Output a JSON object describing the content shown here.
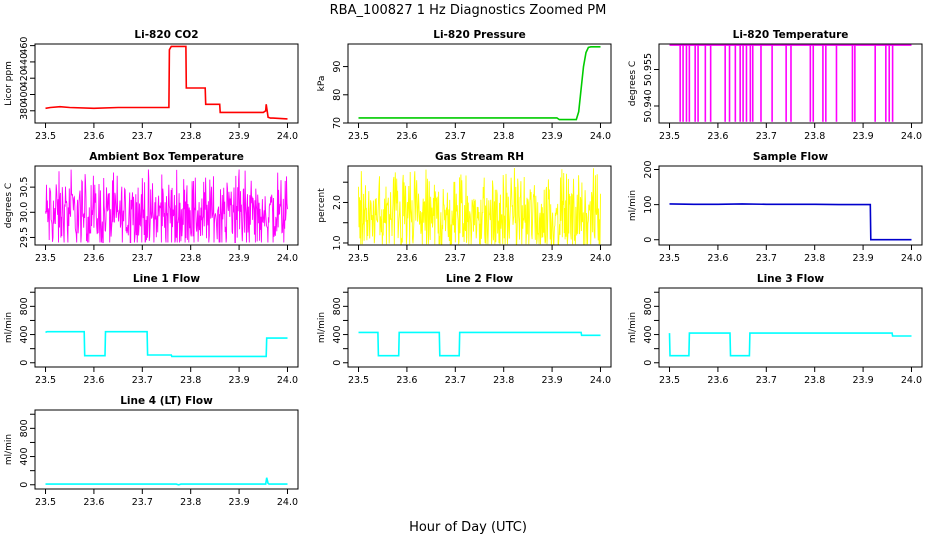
{
  "page": {
    "title": "RBA_100827  1 Hz Diagnostics Zoomed PM",
    "xlabel": "Hour of Day (UTC)"
  },
  "chart_data": [
    {
      "type": "line",
      "title": "Li-820 CO2",
      "ylabel": "Licor ppm",
      "color": "#ff0000",
      "xlim": [
        23.5,
        24.0
      ],
      "xticks": [
        23.5,
        23.6,
        23.7,
        23.8,
        23.9,
        24.0
      ],
      "ylim": [
        365,
        462
      ],
      "yticks": [
        380,
        400,
        420,
        440,
        460
      ],
      "series": [
        {
          "x": [
            23.5,
            23.51,
            23.53,
            23.55,
            23.6,
            23.65,
            23.7,
            23.755,
            23.756,
            23.76,
            23.79,
            23.791,
            23.83,
            23.831,
            23.86,
            23.861,
            23.95,
            23.955,
            23.956,
            23.96,
            23.965,
            23.97,
            24.0
          ],
          "y": [
            383,
            384,
            385,
            384,
            383,
            384,
            384,
            384,
            455,
            459,
            459,
            408,
            408,
            388,
            388,
            378,
            378,
            380,
            388,
            372,
            371,
            371,
            370
          ]
        }
      ]
    },
    {
      "type": "line",
      "title": "Li-820 Pressure",
      "ylabel": "kPa",
      "color": "#00cc00",
      "xlim": [
        23.5,
        24.0
      ],
      "xticks": [
        23.5,
        23.6,
        23.7,
        23.8,
        23.9,
        24.0
      ],
      "ylim": [
        70,
        98
      ],
      "yticks": [
        70,
        80,
        90
      ],
      "series": [
        {
          "x": [
            23.5,
            23.6,
            23.7,
            23.8,
            23.9,
            23.91,
            23.915,
            23.95,
            23.955,
            23.96,
            23.965,
            23.97,
            23.975,
            23.98,
            24.0
          ],
          "y": [
            71.8,
            71.8,
            71.8,
            71.8,
            71.8,
            71.8,
            71.2,
            71.2,
            74,
            82,
            90,
            95,
            96.8,
            97,
            97
          ]
        }
      ]
    },
    {
      "type": "line",
      "title": "Li-820 Temperature",
      "ylabel": "degrees C",
      "color": "#ff00ff",
      "xlim": [
        23.5,
        24.0
      ],
      "xticks": [
        23.5,
        23.6,
        23.7,
        23.8,
        23.9,
        24.0
      ],
      "ylim": [
        50.933,
        50.9655
      ],
      "yticks": [
        50.94,
        50.955
      ],
      "ytick_labels": [
        "50.940",
        "50.955"
      ],
      "baseline": 50.965,
      "low": 50.9335,
      "spikes": [
        23.522,
        23.528,
        23.535,
        23.541,
        23.553,
        23.559,
        23.574,
        23.585,
        23.615,
        23.624,
        23.636,
        23.646,
        23.652,
        23.659,
        23.667,
        23.672,
        23.689,
        23.712,
        23.741,
        23.751,
        23.791,
        23.797,
        23.817,
        23.823,
        23.845,
        23.878,
        23.883,
        23.925,
        23.947,
        23.954,
        23.961
      ]
    },
    {
      "type": "line",
      "title": "Ambient Box Temperature",
      "ylabel": "degrees C",
      "color": "#ff00ff",
      "xlim": [
        23.5,
        24.0
      ],
      "xticks": [
        23.5,
        23.6,
        23.7,
        23.8,
        23.9,
        24.0
      ],
      "ylim": [
        29.35,
        30.92
      ],
      "yticks": [
        29.5,
        30.0,
        30.5
      ],
      "ytick_labels": [
        "29.5",
        "30.0",
        "30.5"
      ],
      "noise": {
        "center": 29.95,
        "min": 29.4,
        "max": 30.85
      }
    },
    {
      "type": "line",
      "title": "Gas Stream RH",
      "ylabel": "percent",
      "color": "#ffff00",
      "xlim": [
        23.5,
        24.0
      ],
      "xticks": [
        23.5,
        23.6,
        23.7,
        23.8,
        23.9,
        24.0
      ],
      "ylim": [
        0.95,
        2.9
      ],
      "yticks": [
        1.0,
        1.5,
        2.0,
        2.5
      ],
      "ytick_labels": [
        "1.0",
        "",
        "2.0",
        ""
      ],
      "noise": {
        "center": 1.6,
        "min": 0.97,
        "max": 2.85
      }
    },
    {
      "type": "line",
      "title": "Sample Flow",
      "ylabel": "ml/min",
      "color": "#0000cc",
      "xlim": [
        23.5,
        24.0
      ],
      "xticks": [
        23.5,
        23.6,
        23.7,
        23.8,
        23.9,
        24.0
      ],
      "ylim": [
        -15,
        210
      ],
      "yticks": [
        0,
        100,
        200
      ],
      "series": [
        {
          "x": [
            23.5,
            23.55,
            23.6,
            23.65,
            23.7,
            23.75,
            23.8,
            23.85,
            23.9,
            23.915,
            23.916,
            23.93,
            24.0
          ],
          "y": [
            102,
            101,
            101,
            102,
            101,
            101,
            101,
            100,
            100,
            100,
            0,
            0,
            0
          ]
        }
      ]
    },
    {
      "type": "line",
      "title": "Line 1 Flow",
      "ylabel": "ml/min",
      "color": "#00ffff",
      "xlim": [
        23.5,
        24.0
      ],
      "xticks": [
        23.5,
        23.6,
        23.7,
        23.8,
        23.9,
        24.0
      ],
      "ylim": [
        -60,
        1060
      ],
      "yticks": [
        0,
        200,
        400,
        600,
        800,
        1000
      ],
      "ytick_labels": [
        "0",
        "400",
        "800"
      ],
      "ytick_label_at": [
        0,
        400,
        800
      ],
      "series": [
        {
          "x": [
            23.5,
            23.503,
            23.58,
            23.581,
            23.623,
            23.624,
            23.71,
            23.711,
            23.76,
            23.761,
            23.956,
            23.957,
            24.0
          ],
          "y": [
            430,
            440,
            440,
            100,
            100,
            440,
            440,
            110,
            110,
            90,
            90,
            350,
            350
          ]
        }
      ]
    },
    {
      "type": "line",
      "title": "Line 2 Flow",
      "ylabel": "ml/min",
      "color": "#00ffff",
      "xlim": [
        23.5,
        24.0
      ],
      "xticks": [
        23.5,
        23.6,
        23.7,
        23.8,
        23.9,
        24.0
      ],
      "ylim": [
        -60,
        1060
      ],
      "yticks": [
        0,
        200,
        400,
        600,
        800,
        1000
      ],
      "ytick_labels": [
        "0",
        "400",
        "800"
      ],
      "ytick_label_at": [
        0,
        400,
        800
      ],
      "series": [
        {
          "x": [
            23.5,
            23.54,
            23.541,
            23.583,
            23.584,
            23.667,
            23.668,
            23.708,
            23.709,
            23.96,
            23.961,
            24.0
          ],
          "y": [
            430,
            430,
            100,
            100,
            430,
            430,
            100,
            100,
            430,
            430,
            390,
            390
          ]
        }
      ]
    },
    {
      "type": "line",
      "title": "Line 3 Flow",
      "ylabel": "ml/min",
      "color": "#00ffff",
      "xlim": [
        23.5,
        24.0
      ],
      "xticks": [
        23.5,
        23.6,
        23.7,
        23.8,
        23.9,
        24.0
      ],
      "ylim": [
        -60,
        1060
      ],
      "yticks": [
        0,
        200,
        400,
        600,
        800,
        1000
      ],
      "ytick_labels": [
        "0",
        "400",
        "800"
      ],
      "ytick_label_at": [
        0,
        400,
        800
      ],
      "series": [
        {
          "x": [
            23.5,
            23.501,
            23.502,
            23.54,
            23.541,
            23.625,
            23.626,
            23.665,
            23.666,
            23.96,
            23.961,
            24.0
          ],
          "y": [
            420,
            100,
            100,
            100,
            420,
            420,
            100,
            100,
            420,
            420,
            380,
            380
          ]
        }
      ]
    },
    {
      "type": "line",
      "title": "Line 4 (LT) Flow",
      "ylabel": "ml/min",
      "color": "#00ffff",
      "xlim": [
        23.5,
        24.0
      ],
      "xticks": [
        23.5,
        23.6,
        23.7,
        23.8,
        23.9,
        24.0
      ],
      "ylim": [
        -60,
        1060
      ],
      "yticks": [
        0,
        200,
        400,
        600,
        800,
        1000
      ],
      "ytick_labels": [
        "0",
        "400",
        "800"
      ],
      "ytick_label_at": [
        0,
        400,
        800
      ],
      "series": [
        {
          "x": [
            23.5,
            23.77,
            23.775,
            23.78,
            23.955,
            23.957,
            23.96,
            23.962,
            24.0
          ],
          "y": [
            10,
            10,
            0,
            10,
            10,
            100,
            20,
            10,
            10
          ]
        }
      ]
    }
  ]
}
